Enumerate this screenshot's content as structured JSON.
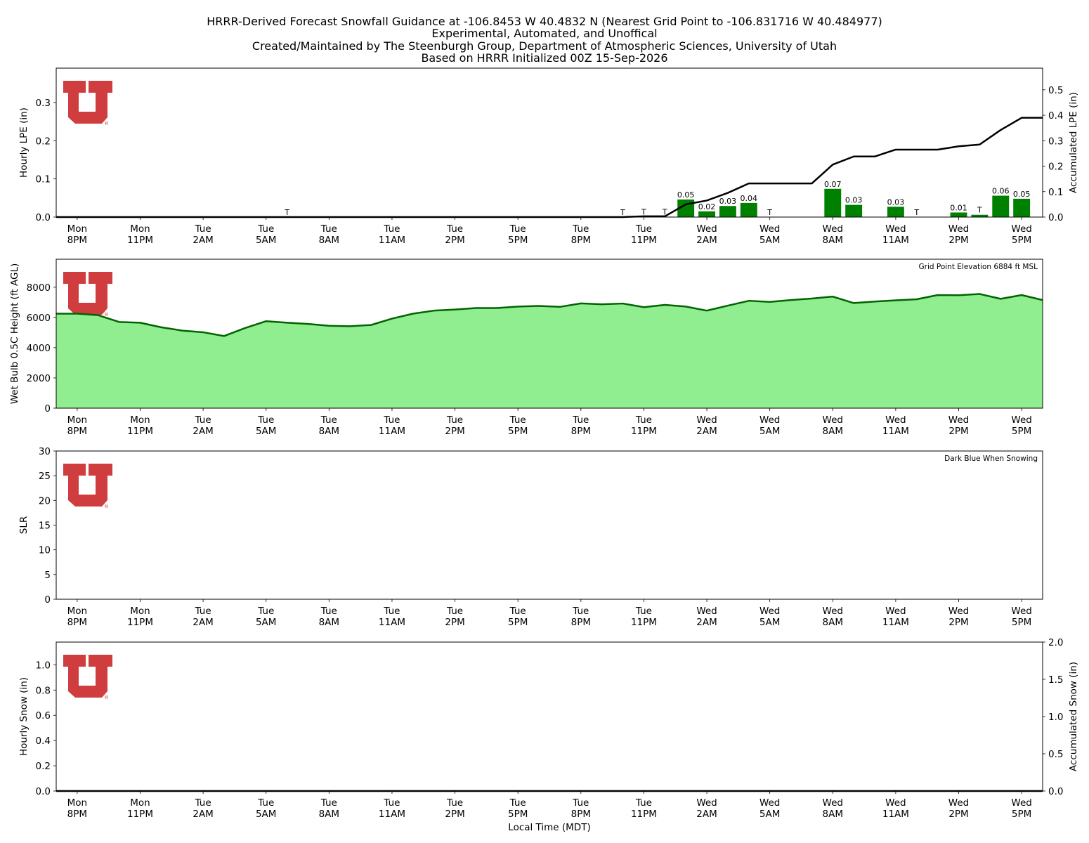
{
  "header": {
    "title_lines": [
      "HRRR-Derived Forecast Snowfall Guidance at -106.8453 W 40.4832 N (Nearest Grid Point to -106.831716 W 40.484977)",
      "Experimental, Automated, and Unoffical",
      "Created/Maintained by The Steenburgh Group, Department of Atmospheric Sciences, University of Utah",
      "Based on HRRR Initialized 00Z 15-Sep-2026"
    ]
  },
  "time_axis": {
    "xlabel": "Local Time (MDT)",
    "ticks": [
      {
        "x": 0,
        "day": "Mon",
        "hour": "8PM"
      },
      {
        "x": 3,
        "day": "Mon",
        "hour": "11PM"
      },
      {
        "x": 6,
        "day": "Tue",
        "hour": "2AM"
      },
      {
        "x": 9,
        "day": "Tue",
        "hour": "5AM"
      },
      {
        "x": 12,
        "day": "Tue",
        "hour": "8AM"
      },
      {
        "x": 15,
        "day": "Tue",
        "hour": "11AM"
      },
      {
        "x": 18,
        "day": "Tue",
        "hour": "2PM"
      },
      {
        "x": 21,
        "day": "Tue",
        "hour": "5PM"
      },
      {
        "x": 24,
        "day": "Tue",
        "hour": "8PM"
      },
      {
        "x": 27,
        "day": "Tue",
        "hour": "11PM"
      },
      {
        "x": 30,
        "day": "Wed",
        "hour": "2AM"
      },
      {
        "x": 33,
        "day": "Wed",
        "hour": "5AM"
      },
      {
        "x": 36,
        "day": "Wed",
        "hour": "8AM"
      },
      {
        "x": 39,
        "day": "Wed",
        "hour": "11AM"
      },
      {
        "x": 42,
        "day": "Wed",
        "hour": "2PM"
      },
      {
        "x": 45,
        "day": "Wed",
        "hour": "5PM"
      }
    ],
    "xlim": [
      -1,
      46
    ]
  },
  "logo": {
    "name": "university-of-utah-block-u",
    "color": "#d03d3f"
  },
  "chart_data": [
    {
      "type": "bar",
      "panel": "lpe",
      "ylabel": "Hourly LPE (in)",
      "ylim": [
        0,
        0.39
      ],
      "yticks": [
        "0.0",
        "0.1",
        "0.2",
        "0.3"
      ],
      "y2label": "Accumulated LPE (in)",
      "y2lim": [
        0,
        0.585
      ],
      "y2ticks": [
        "0.0",
        "0.1",
        "0.2",
        "0.3",
        "0.4",
        "0.5"
      ],
      "bar_color": "#008000",
      "bars": [
        {
          "x": 10,
          "value": 0,
          "label": "T"
        },
        {
          "x": 26,
          "value": 0,
          "label": "T"
        },
        {
          "x": 27,
          "value": 0.001,
          "label": "T"
        },
        {
          "x": 28,
          "value": 0.001,
          "label": "T"
        },
        {
          "x": 29,
          "value": 0.046,
          "label": "0.05"
        },
        {
          "x": 30,
          "value": 0.015,
          "label": "0.02"
        },
        {
          "x": 31,
          "value": 0.029,
          "label": "0.03"
        },
        {
          "x": 32,
          "value": 0.037,
          "label": "0.04"
        },
        {
          "x": 33,
          "value": 0,
          "label": "T"
        },
        {
          "x": 36,
          "value": 0.074,
          "label": "0.07"
        },
        {
          "x": 37,
          "value": 0.032,
          "label": "0.03"
        },
        {
          "x": 39,
          "value": 0.027,
          "label": "0.03"
        },
        {
          "x": 40,
          "value": 0,
          "label": "T"
        },
        {
          "x": 42,
          "value": 0.012,
          "label": "0.01"
        },
        {
          "x": 43,
          "value": 0.006,
          "label": "T"
        },
        {
          "x": 44,
          "value": 0.056,
          "label": "0.06"
        },
        {
          "x": 45,
          "value": 0.048,
          "label": "0.05"
        }
      ],
      "accum_line": {
        "color": "#000000",
        "points": [
          [
            -1,
            0
          ],
          [
            10,
            0
          ],
          [
            26,
            0
          ],
          [
            27,
            0.003
          ],
          [
            28,
            0.003
          ],
          [
            29,
            0.05
          ],
          [
            30,
            0.065
          ],
          [
            31,
            0.095
          ],
          [
            32,
            0.132
          ],
          [
            33,
            0.132
          ],
          [
            34,
            0.132
          ],
          [
            35,
            0.132
          ],
          [
            36,
            0.206
          ],
          [
            37,
            0.238
          ],
          [
            38,
            0.238
          ],
          [
            39,
            0.265
          ],
          [
            40,
            0.265
          ],
          [
            41,
            0.265
          ],
          [
            42,
            0.278
          ],
          [
            43,
            0.285
          ],
          [
            44,
            0.342
          ],
          [
            45,
            0.39
          ],
          [
            46,
            0.39
          ]
        ]
      }
    },
    {
      "type": "area",
      "panel": "wetbulb",
      "ylabel": "Wet Bulb 0.5C Height (ft AGL)",
      "ylim": [
        0,
        9850
      ],
      "yticks": [
        0,
        2000,
        4000,
        6000,
        8000
      ],
      "annotation": "Grid Point Elevation 6884 ft MSL",
      "fill_color": "#90ee90",
      "line_color": "#006400",
      "points": [
        [
          -1,
          6250
        ],
        [
          0,
          6250
        ],
        [
          1,
          6150
        ],
        [
          2,
          5700
        ],
        [
          3,
          5650
        ],
        [
          4,
          5350
        ],
        [
          5,
          5130
        ],
        [
          6,
          5020
        ],
        [
          7,
          4770
        ],
        [
          8,
          5300
        ],
        [
          9,
          5750
        ],
        [
          10,
          5650
        ],
        [
          11,
          5570
        ],
        [
          12,
          5450
        ],
        [
          13,
          5420
        ],
        [
          14,
          5500
        ],
        [
          15,
          5920
        ],
        [
          16,
          6250
        ],
        [
          17,
          6450
        ],
        [
          18,
          6520
        ],
        [
          19,
          6620
        ],
        [
          20,
          6620
        ],
        [
          21,
          6720
        ],
        [
          22,
          6760
        ],
        [
          23,
          6700
        ],
        [
          24,
          6930
        ],
        [
          25,
          6870
        ],
        [
          26,
          6920
        ],
        [
          27,
          6680
        ],
        [
          28,
          6830
        ],
        [
          29,
          6720
        ],
        [
          30,
          6450
        ],
        [
          31,
          6780
        ],
        [
          32,
          7100
        ],
        [
          33,
          7030
        ],
        [
          34,
          7150
        ],
        [
          35,
          7250
        ],
        [
          36,
          7380
        ],
        [
          37,
          6950
        ],
        [
          38,
          7050
        ],
        [
          39,
          7130
        ],
        [
          40,
          7200
        ],
        [
          41,
          7480
        ],
        [
          42,
          7470
        ],
        [
          43,
          7550
        ],
        [
          44,
          7230
        ],
        [
          45,
          7480
        ],
        [
          46,
          7150
        ]
      ]
    },
    {
      "type": "line",
      "panel": "slr",
      "ylabel": "SLR",
      "ylim": [
        0,
        30
      ],
      "yticks": [
        0,
        5,
        10,
        15,
        20,
        25,
        30
      ],
      "annotation": "Dark Blue When Snowing",
      "points": []
    },
    {
      "type": "bar",
      "panel": "snow",
      "ylabel": "Hourly Snow (in)",
      "ylim": [
        0,
        1.18
      ],
      "yticks": [
        "0.0",
        "0.2",
        "0.4",
        "0.6",
        "0.8",
        "1.0"
      ],
      "y2label": "Accumulated Snow (in)",
      "y2lim": [
        0,
        2.0
      ],
      "y2ticks": [
        "0.0",
        "0.5",
        "1.0",
        "1.5",
        "2.0"
      ],
      "bars": [],
      "accum_line": {
        "color": "#000000",
        "points": [
          [
            -1,
            0
          ],
          [
            46,
            0
          ]
        ]
      }
    }
  ]
}
